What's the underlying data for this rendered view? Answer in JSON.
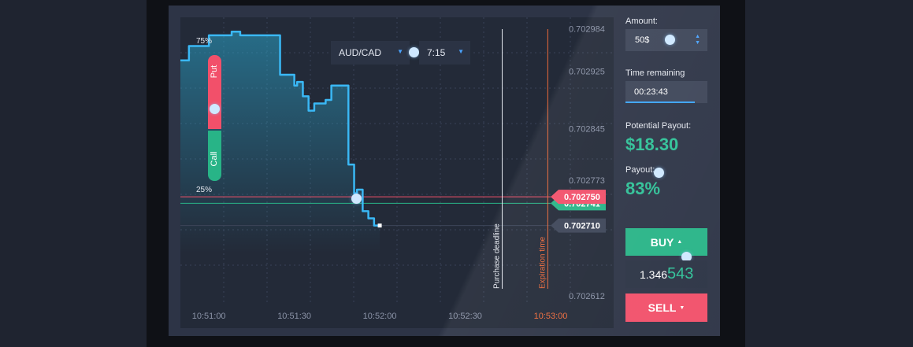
{
  "toolbar": {
    "asset": "AUD/CAD",
    "timeframe": "7:15"
  },
  "put_call": {
    "put_percent": "75%",
    "put_label": "Put",
    "call_label": "Call",
    "call_percent": "25%"
  },
  "chart_data": {
    "type": "line",
    "series": [
      {
        "x": [
          "10:50:50",
          "10:50:53",
          "10:50:56",
          "10:51:00",
          "10:51:05",
          "10:51:08",
          "10:51:11",
          "10:51:20",
          "10:51:25",
          "10:51:30",
          "10:51:31",
          "10:51:33",
          "10:51:35",
          "10:51:37",
          "10:51:41",
          "10:51:43",
          "10:51:45",
          "10:51:47",
          "10:51:49",
          "10:51:51",
          "10:51:52",
          "10:51:54",
          "10:51:55",
          "10:51:56",
          "10:51:57",
          "10:51:58",
          "10:51:59",
          "10:52:00"
        ],
        "y": [
          0.70294,
          0.70296,
          0.70296,
          0.702975,
          0.702975,
          0.70298,
          0.702975,
          0.702975,
          0.70292,
          0.702905,
          0.70291,
          0.70289,
          0.70287,
          0.70288,
          0.702885,
          0.702905,
          0.702905,
          0.702905,
          0.702795,
          0.702755,
          0.70276,
          0.70273,
          0.70273,
          0.70272,
          0.70272,
          0.70271,
          0.70271,
          0.70271
        ]
      }
    ],
    "xlabel": "",
    "ylabel": "",
    "x_ticks": [
      "10:51:00",
      "10:51:30",
      "10:52:00",
      "10:52:30",
      "10:53:00"
    ],
    "y_ticks": [
      "0.702984",
      "0.702925",
      "0.702845",
      "0.702773",
      "0.702612"
    ],
    "xlim": [
      "10:50:50",
      "10:53:00"
    ],
    "ylim": [
      0.7026,
      0.703
    ],
    "grid": true,
    "lines": [
      {
        "label": "0.702741",
        "color": "#28b487"
      },
      {
        "label": "0.702750",
        "color": "#f2506a"
      },
      {
        "label": "0.702710",
        "color": "#3d4558"
      }
    ],
    "vertical_markers": [
      {
        "label": "Purchase deadline",
        "color": "#e6e9f0"
      },
      {
        "label": "Expiration time",
        "color": "#ef6a3a",
        "tick_label": "10:53:00"
      }
    ]
  },
  "sidebar": {
    "amount_label": "Amount:",
    "amount_value": "50$",
    "time_label": "Time remaining",
    "time_value": "00:23:43",
    "time_remaining_fraction": 0.85,
    "potential_payout_label": "Potential Payout:",
    "potential_payout_value": "$18.30",
    "payout_label": "Payout:",
    "payout_value": "83%",
    "buy_label": "BUY",
    "price_prefix": "1.346",
    "price_suffix": "543",
    "sell_label": "SELL"
  },
  "colors": {
    "accent_green": "#28b487",
    "accent_red": "#f2506a",
    "line_blue": "#3ab8f5",
    "expiration_orange": "#ef6a3a"
  }
}
